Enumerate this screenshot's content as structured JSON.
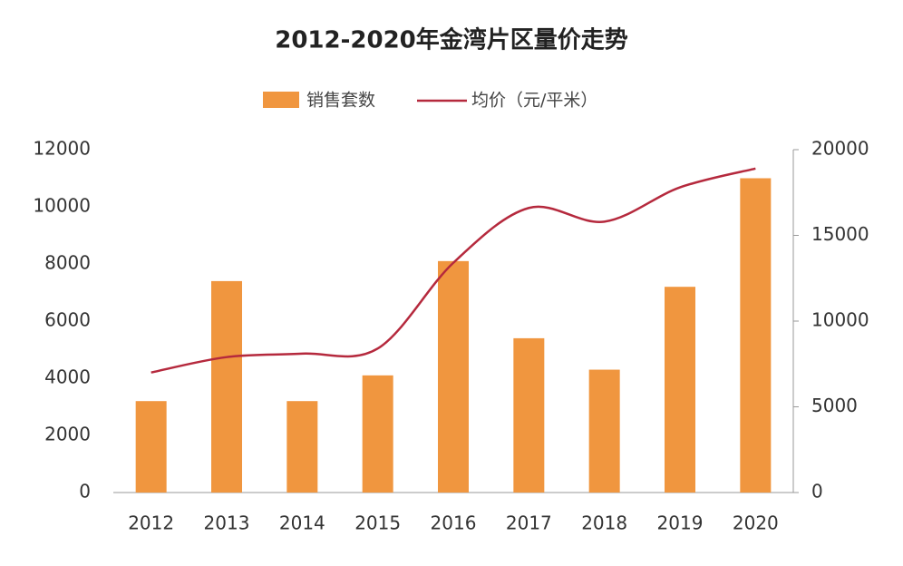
{
  "chart_data": {
    "type": "bar",
    "title": "2012-2020年金湾片区量价走势",
    "categories": [
      "2012",
      "2013",
      "2014",
      "2015",
      "2016",
      "2017",
      "2018",
      "2019",
      "2020"
    ],
    "series": [
      {
        "name": "销售套数",
        "type": "bar",
        "color": "#f0963f",
        "values": [
          3200,
          7400,
          3200,
          4100,
          8100,
          5400,
          4300,
          7200,
          11000
        ]
      },
      {
        "name": "均价（元/平米）",
        "type": "line",
        "axis": "y2",
        "color": "#b5293d",
        "values": [
          7000,
          7900,
          8100,
          8400,
          13400,
          16600,
          15800,
          17800,
          18900
        ]
      }
    ],
    "ylim": [
      0,
      12000
    ],
    "yticks": [
      0,
      2000,
      4000,
      6000,
      8000,
      10000,
      12000
    ],
    "y2lim": [
      0,
      20000
    ],
    "y2ticks": [
      0,
      5000,
      10000,
      15000,
      20000
    ],
    "legend": "top"
  }
}
